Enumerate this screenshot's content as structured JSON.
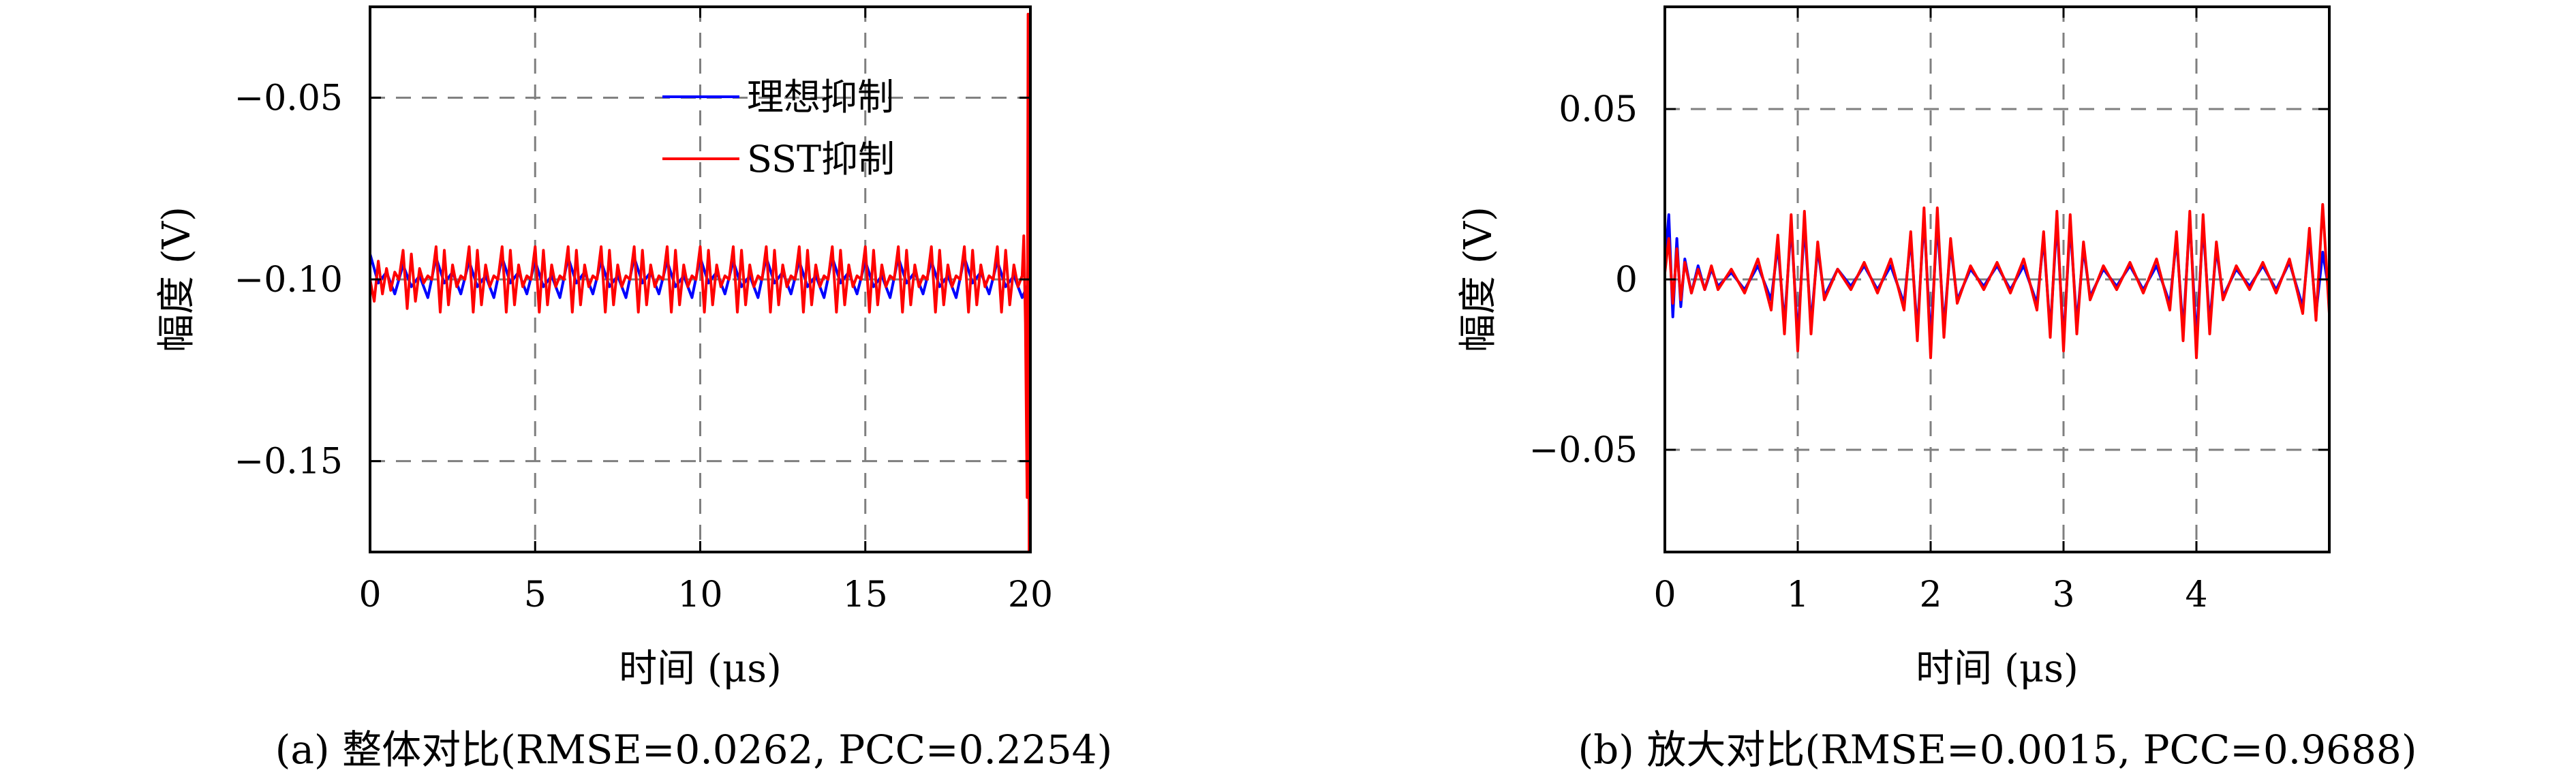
{
  "chart_data": [
    {
      "type": "line",
      "caption": "(a) 整体对比(RMSE=0.0262, PCC=0.2254)",
      "xlabel": "时间 (μs)",
      "ylabel": "幅度 (V)",
      "xlim": [
        0,
        20
      ],
      "ylim": [
        -0.175,
        -0.025
      ],
      "xticks": [
        0,
        5,
        10,
        15,
        20
      ],
      "xtick_labels": [
        "0",
        "5",
        "10",
        "15",
        "20"
      ],
      "yticks": [
        -0.05,
        -0.1,
        -0.15
      ],
      "ytick_labels": [
        "−0.05",
        "−0.10",
        "−0.15"
      ],
      "grid": true,
      "legend_position": "top-center",
      "series": [
        {
          "name": "理想抑制",
          "color": "#0000ff",
          "x": [
            0,
            0.25,
            0.5,
            0.75,
            1,
            1.25,
            1.5,
            1.75,
            2,
            2.25,
            2.5,
            2.75,
            3,
            3.25,
            3.5,
            3.75,
            4,
            4.25,
            4.5,
            4.75,
            5,
            5.25,
            5.5,
            5.75,
            6,
            6.25,
            6.5,
            6.75,
            7,
            7.25,
            7.5,
            7.75,
            8,
            8.25,
            8.5,
            8.75,
            9,
            9.25,
            9.5,
            9.75,
            10,
            10.25,
            10.5,
            10.75,
            11,
            11.25,
            11.5,
            11.75,
            12,
            12.25,
            12.5,
            12.75,
            13,
            13.25,
            13.5,
            13.75,
            14,
            14.25,
            14.5,
            14.75,
            15,
            15.25,
            15.5,
            15.75,
            16,
            16.25,
            16.5,
            16.75,
            17,
            17.25,
            17.5,
            17.75,
            18,
            18.25,
            18.5,
            18.75,
            19,
            19.25,
            19.5,
            19.75,
            20
          ],
          "y": [
            -0.093,
            -0.101,
            -0.098,
            -0.104,
            -0.096,
            -0.102,
            -0.099,
            -0.105,
            -0.094,
            -0.101,
            -0.098,
            -0.104,
            -0.095,
            -0.102,
            -0.099,
            -0.105,
            -0.094,
            -0.101,
            -0.098,
            -0.104,
            -0.095,
            -0.102,
            -0.099,
            -0.105,
            -0.094,
            -0.101,
            -0.098,
            -0.104,
            -0.095,
            -0.102,
            -0.099,
            -0.105,
            -0.094,
            -0.101,
            -0.098,
            -0.104,
            -0.095,
            -0.102,
            -0.099,
            -0.105,
            -0.094,
            -0.101,
            -0.098,
            -0.104,
            -0.095,
            -0.102,
            -0.099,
            -0.105,
            -0.094,
            -0.101,
            -0.098,
            -0.104,
            -0.095,
            -0.102,
            -0.099,
            -0.105,
            -0.094,
            -0.101,
            -0.098,
            -0.104,
            -0.095,
            -0.102,
            -0.099,
            -0.105,
            -0.094,
            -0.101,
            -0.098,
            -0.104,
            -0.095,
            -0.102,
            -0.099,
            -0.105,
            -0.094,
            -0.101,
            -0.098,
            -0.104,
            -0.095,
            -0.102,
            -0.099,
            -0.105,
            -0.1
          ]
        },
        {
          "name": "SST抑制",
          "color": "#ff0000",
          "x": [
            0,
            0.125,
            0.25,
            0.375,
            0.5,
            0.625,
            0.75,
            0.875,
            1,
            1.125,
            1.25,
            1.375,
            1.5,
            1.625,
            1.75,
            1.875,
            2,
            2.125,
            2.25,
            2.375,
            2.5,
            2.625,
            2.75,
            2.875,
            3,
            3.125,
            3.25,
            3.375,
            3.5,
            3.625,
            3.75,
            3.875,
            4,
            4.125,
            4.25,
            4.375,
            4.5,
            4.625,
            4.75,
            4.875,
            5,
            5.125,
            5.25,
            5.375,
            5.5,
            5.625,
            5.75,
            5.875,
            6,
            6.125,
            6.25,
            6.375,
            6.5,
            6.625,
            6.75,
            6.875,
            7,
            7.125,
            7.25,
            7.375,
            7.5,
            7.625,
            7.75,
            7.875,
            8,
            8.125,
            8.25,
            8.375,
            8.5,
            8.625,
            8.75,
            8.875,
            9,
            9.125,
            9.25,
            9.375,
            9.5,
            9.625,
            9.75,
            9.875,
            10,
            10.125,
            10.25,
            10.375,
            10.5,
            10.625,
            10.75,
            10.875,
            11,
            11.125,
            11.25,
            11.375,
            11.5,
            11.625,
            11.75,
            11.875,
            12,
            12.125,
            12.25,
            12.375,
            12.5,
            12.625,
            12.75,
            12.875,
            13,
            13.125,
            13.25,
            13.375,
            13.5,
            13.625,
            13.75,
            13.875,
            14,
            14.125,
            14.25,
            14.375,
            14.5,
            14.625,
            14.75,
            14.875,
            15,
            15.125,
            15.25,
            15.375,
            15.5,
            15.625,
            15.75,
            15.875,
            16,
            16.125,
            16.25,
            16.375,
            16.5,
            16.625,
            16.75,
            16.875,
            17,
            17.125,
            17.25,
            17.375,
            17.5,
            17.625,
            17.75,
            17.875,
            18,
            18.125,
            18.25,
            18.375,
            18.5,
            18.625,
            18.75,
            18.875,
            19,
            19.125,
            19.25,
            19.375,
            19.5,
            19.625,
            19.75,
            19.8,
            19.85,
            19.9,
            19.93,
            19.96,
            20
          ],
          "y": [
            -0.1,
            -0.106,
            -0.095,
            -0.104,
            -0.097,
            -0.103,
            -0.098,
            -0.1,
            -0.092,
            -0.108,
            -0.093,
            -0.106,
            -0.097,
            -0.101,
            -0.099,
            -0.1,
            -0.091,
            -0.109,
            -0.092,
            -0.107,
            -0.096,
            -0.102,
            -0.099,
            -0.1,
            -0.091,
            -0.109,
            -0.092,
            -0.107,
            -0.096,
            -0.102,
            -0.099,
            -0.1,
            -0.091,
            -0.109,
            -0.092,
            -0.107,
            -0.096,
            -0.102,
            -0.099,
            -0.1,
            -0.091,
            -0.109,
            -0.092,
            -0.107,
            -0.096,
            -0.102,
            -0.099,
            -0.1,
            -0.091,
            -0.109,
            -0.092,
            -0.107,
            -0.096,
            -0.102,
            -0.099,
            -0.1,
            -0.091,
            -0.109,
            -0.092,
            -0.107,
            -0.096,
            -0.102,
            -0.099,
            -0.1,
            -0.091,
            -0.109,
            -0.092,
            -0.107,
            -0.096,
            -0.102,
            -0.099,
            -0.1,
            -0.091,
            -0.109,
            -0.092,
            -0.107,
            -0.096,
            -0.102,
            -0.099,
            -0.1,
            -0.091,
            -0.109,
            -0.092,
            -0.107,
            -0.096,
            -0.102,
            -0.099,
            -0.1,
            -0.091,
            -0.109,
            -0.092,
            -0.107,
            -0.096,
            -0.102,
            -0.099,
            -0.1,
            -0.091,
            -0.109,
            -0.092,
            -0.107,
            -0.096,
            -0.102,
            -0.099,
            -0.1,
            -0.091,
            -0.109,
            -0.092,
            -0.107,
            -0.096,
            -0.102,
            -0.099,
            -0.1,
            -0.091,
            -0.109,
            -0.092,
            -0.107,
            -0.096,
            -0.102,
            -0.099,
            -0.1,
            -0.091,
            -0.109,
            -0.092,
            -0.107,
            -0.096,
            -0.102,
            -0.099,
            -0.1,
            -0.091,
            -0.109,
            -0.092,
            -0.107,
            -0.096,
            -0.102,
            -0.099,
            -0.1,
            -0.091,
            -0.109,
            -0.092,
            -0.107,
            -0.096,
            -0.102,
            -0.099,
            -0.1,
            -0.091,
            -0.109,
            -0.092,
            -0.107,
            -0.096,
            -0.102,
            -0.099,
            -0.1,
            -0.091,
            -0.109,
            -0.092,
            -0.107,
            -0.096,
            -0.102,
            -0.099,
            -0.088,
            -0.112,
            -0.16,
            -0.027,
            -0.175,
            -0.1
          ]
        }
      ]
    },
    {
      "type": "line",
      "caption": "(b) 放大对比(RMSE=0.0015, PCC=0.9688)",
      "xlabel": "时间 (μs)",
      "ylabel": "幅度 (V)",
      "xlim": [
        0,
        5
      ],
      "ylim": [
        -0.08,
        0.08
      ],
      "xticks": [
        0,
        1,
        2,
        3,
        4
      ],
      "xtick_labels": [
        "0",
        "1",
        "2",
        "3",
        "4"
      ],
      "yticks": [
        0.05,
        0,
        -0.05
      ],
      "ytick_labels": [
        "0.05",
        "0",
        "−0.05"
      ],
      "grid": true,
      "series": [
        {
          "name": "理想抑制",
          "color": "#0000ff",
          "x": [
            0,
            0.03,
            0.06,
            0.09,
            0.12,
            0.15,
            0.2,
            0.25,
            0.3,
            0.35,
            0.4,
            0.5,
            0.6,
            0.7,
            0.8,
            0.85,
            0.9,
            0.95,
            1,
            1.05,
            1.1,
            1.15,
            1.2,
            1.3,
            1.4,
            1.5,
            1.6,
            1.7,
            1.8,
            1.85,
            1.9,
            1.95,
            2,
            2.05,
            2.1,
            2.15,
            2.2,
            2.3,
            2.4,
            2.5,
            2.6,
            2.7,
            2.8,
            2.85,
            2.9,
            2.95,
            3,
            3.05,
            3.1,
            3.15,
            3.2,
            3.3,
            3.4,
            3.5,
            3.6,
            3.7,
            3.8,
            3.85,
            3.9,
            3.95,
            4,
            4.05,
            4.1,
            4.15,
            4.2,
            4.3,
            4.4,
            4.5,
            4.6,
            4.7,
            4.8,
            4.85,
            4.9,
            4.95,
            5
          ],
          "y": [
            0.005,
            0.019,
            -0.011,
            0.012,
            -0.008,
            0.006,
            -0.004,
            0.004,
            -0.003,
            0.003,
            -0.002,
            0.002,
            -0.003,
            0.004,
            -0.006,
            0.01,
            -0.013,
            0.016,
            -0.017,
            0.016,
            -0.013,
            0.009,
            -0.005,
            0.003,
            -0.002,
            0.004,
            -0.003,
            0.004,
            -0.007,
            0.012,
            -0.015,
            0.018,
            -0.018,
            0.017,
            -0.014,
            0.01,
            -0.006,
            0.003,
            -0.002,
            0.004,
            -0.003,
            0.004,
            -0.007,
            0.012,
            -0.015,
            0.017,
            -0.018,
            0.016,
            -0.013,
            0.009,
            -0.005,
            0.003,
            -0.002,
            0.004,
            -0.003,
            0.004,
            -0.007,
            0.012,
            -0.015,
            0.018,
            -0.018,
            0.016,
            -0.013,
            0.009,
            -0.005,
            0.003,
            -0.002,
            0.004,
            -0.003,
            0.005,
            -0.008,
            0.012,
            -0.01,
            0.008,
            -0.004
          ]
        },
        {
          "name": "SST抑制",
          "color": "#ff0000",
          "x": [
            0,
            0.03,
            0.06,
            0.09,
            0.12,
            0.15,
            0.2,
            0.25,
            0.3,
            0.35,
            0.4,
            0.5,
            0.6,
            0.7,
            0.8,
            0.85,
            0.9,
            0.95,
            1,
            1.05,
            1.1,
            1.15,
            1.2,
            1.3,
            1.4,
            1.5,
            1.6,
            1.7,
            1.8,
            1.85,
            1.9,
            1.95,
            2,
            2.05,
            2.1,
            2.15,
            2.2,
            2.3,
            2.4,
            2.5,
            2.6,
            2.7,
            2.8,
            2.85,
            2.9,
            2.95,
            3,
            3.05,
            3.1,
            3.15,
            3.2,
            3.3,
            3.4,
            3.5,
            3.6,
            3.7,
            3.8,
            3.85,
            3.9,
            3.95,
            4,
            4.05,
            4.1,
            4.15,
            4.2,
            4.3,
            4.4,
            4.5,
            4.6,
            4.7,
            4.8,
            4.85,
            4.9,
            4.95,
            5
          ],
          "y": [
            0.002,
            0.012,
            -0.007,
            0.009,
            -0.006,
            0.005,
            -0.004,
            0.003,
            -0.003,
            0.004,
            -0.003,
            0.003,
            -0.004,
            0.006,
            -0.009,
            0.013,
            -0.016,
            0.019,
            -0.021,
            0.02,
            -0.016,
            0.011,
            -0.006,
            0.003,
            -0.003,
            0.005,
            -0.004,
            0.006,
            -0.009,
            0.014,
            -0.018,
            0.021,
            -0.023,
            0.021,
            -0.017,
            0.012,
            -0.007,
            0.004,
            -0.003,
            0.005,
            -0.004,
            0.006,
            -0.009,
            0.014,
            -0.017,
            0.02,
            -0.021,
            0.019,
            -0.016,
            0.011,
            -0.006,
            0.004,
            -0.003,
            0.005,
            -0.004,
            0.006,
            -0.009,
            0.014,
            -0.018,
            0.02,
            -0.023,
            0.019,
            -0.016,
            0.011,
            -0.006,
            0.004,
            -0.003,
            0.005,
            -0.004,
            0.006,
            -0.01,
            0.015,
            -0.012,
            0.022,
            -0.01
          ]
        }
      ]
    }
  ]
}
